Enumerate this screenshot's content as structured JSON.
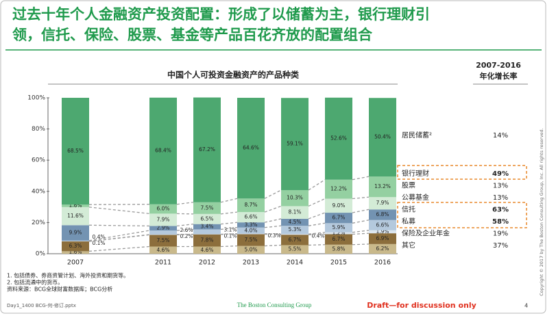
{
  "header": {
    "title_lines": [
      "过去十年个人金融资产投资配置：形成了以储蓄为主，银行理财引",
      "领，信托、保险、股票、基金等产品百花齐放的配置组合"
    ]
  },
  "chart_data": {
    "type": "stacked_bar",
    "title": "中国个人可投资金融资产的产品种类",
    "categories": [
      "2007",
      "2011",
      "2012",
      "2013",
      "2014",
      "2015",
      "2016"
    ],
    "ylim": [
      0,
      100
    ],
    "yticks": [
      {
        "value": 0,
        "label": "0%"
      },
      {
        "value": 20,
        "label": "20%"
      },
      {
        "value": 40,
        "label": "40%"
      },
      {
        "value": 60,
        "label": "60%"
      },
      {
        "value": 80,
        "label": "80%"
      },
      {
        "value": 100,
        "label": "100%"
      }
    ],
    "growth_heading": [
      "2007-2016",
      "年化增长率"
    ],
    "series": [
      {
        "name": "其它",
        "color": "#c9b98b",
        "values": [
          1.6,
          4.6,
          4.6,
          5.0,
          5.5,
          5.8,
          6.2
        ],
        "value_labels": [
          "1.6%",
          "4.6%",
          "4.6%",
          "5.0%",
          "5.5%",
          "5.8%",
          "6.2%"
        ],
        "growth": "37%"
      },
      {
        "name": "保险及企业年金",
        "color": "#8c6e3c",
        "values": [
          6.3,
          7.5,
          7.8,
          7.5,
          6.7,
          6.7,
          6.9
        ],
        "value_labels": [
          "6.3%",
          "7.5%",
          "7.8%",
          "7.5%",
          "6.7%",
          "6.7%",
          "6.9%"
        ],
        "growth": "19%"
      },
      {
        "name": "私募",
        "color": "#dce6ef",
        "values": [
          0.1,
          0.2,
          0.1,
          0.3,
          0.4,
          1.2,
          1.9
        ],
        "value_labels": [
          "0.1%",
          "0.2%",
          "0.1%",
          "0.3%",
          "0.4%",
          "1.2%",
          "1.9%"
        ],
        "growth": "58%",
        "highlight": true
      },
      {
        "name": "信托",
        "color": "#b4c9dd",
        "values": [
          0.4,
          2.6,
          3.1,
          4.0,
          5.3,
          5.9,
          6.6
        ],
        "value_labels": [
          "0.4%",
          "2.6%",
          "3.1%",
          "4.0%",
          "5.3%",
          "5.9%",
          "6.6%"
        ],
        "growth": "63%",
        "highlight": true
      },
      {
        "name": "公募基金",
        "color": "#7393b2",
        "values": [
          9.9,
          2.9,
          3.4,
          3.3,
          4.5,
          6.7,
          6.8
        ],
        "value_labels": [
          "9.9%",
          "2.9%",
          "3.4%",
          "3.3%",
          "4.5%",
          "6.7%",
          "6.8%"
        ],
        "growth": "13%"
      },
      {
        "name": "股票",
        "color": "#d3ebd6",
        "values": [
          11.6,
          7.9,
          6.5,
          6.6,
          8.1,
          9.0,
          7.9
        ],
        "value_labels": [
          "11.6%",
          "7.9%",
          "6.5%",
          "6.6%",
          "8.1%",
          "9.0%",
          "7.9%"
        ],
        "growth": "13%"
      },
      {
        "name": "银行理财",
        "color": "#94d0a1",
        "values": [
          1.6,
          6.0,
          7.5,
          8.7,
          10.3,
          12.2,
          13.2
        ],
        "value_labels": [
          "1.6%",
          "6.0%",
          "7.5%",
          "8.7%",
          "10.3%",
          "12.2%",
          "13.2%"
        ],
        "growth": "49%",
        "highlight": true
      },
      {
        "name": "居民储蓄²",
        "color": "#4da870",
        "values": [
          68.5,
          68.4,
          67.2,
          64.6,
          59.1,
          52.6,
          50.4
        ],
        "value_labels": [
          "68.5%",
          "68.4%",
          "67.2%",
          "64.6%",
          "59.1%",
          "52.6%",
          "50.4%"
        ],
        "growth": "14%"
      }
    ]
  },
  "footnotes": [
    "1. 包括债券、券商资管计划、海外投资和期货等。",
    "2. 包括流通中的货币。",
    "资料来源：BCG全球财富数据库；BCG分析"
  ],
  "footer": {
    "file": "Day1_1400 BCG-何-修订.pptx",
    "company": "The Boston Consulting Group",
    "draft": "Draft—for discussion only",
    "page": "4",
    "copyright": "Copyright © 2017 by The Boston Consulting Group, Inc. All rights reserved."
  }
}
